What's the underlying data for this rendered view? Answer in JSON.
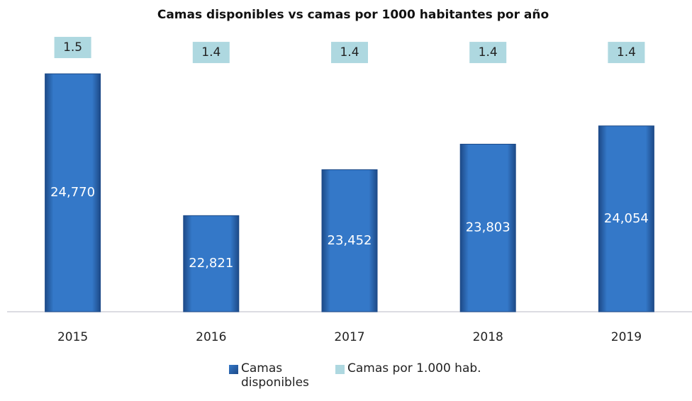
{
  "chart_data": {
    "type": "bar",
    "title": "Camas disponibles vs camas por 1000 habitantes por año",
    "categories": [
      "2015",
      "2016",
      "2017",
      "2018",
      "2019"
    ],
    "series": [
      {
        "name": "Camas disponibles",
        "color": "#2e6fc0",
        "values": [
          24770,
          22821,
          23452,
          23803,
          24054
        ],
        "value_labels": [
          "24,770",
          "22,821",
          "23,452",
          "23,803",
          "24,054"
        ]
      },
      {
        "name": "Camas por 1.000 hab.",
        "color": "#aed8e0",
        "axis": "y2",
        "values": [
          1.5,
          1.4,
          1.4,
          1.4,
          1.4
        ]
      }
    ],
    "ylim": [
      21500,
      25200
    ],
    "y2lim": [
      -3.8,
      1.6
    ]
  }
}
